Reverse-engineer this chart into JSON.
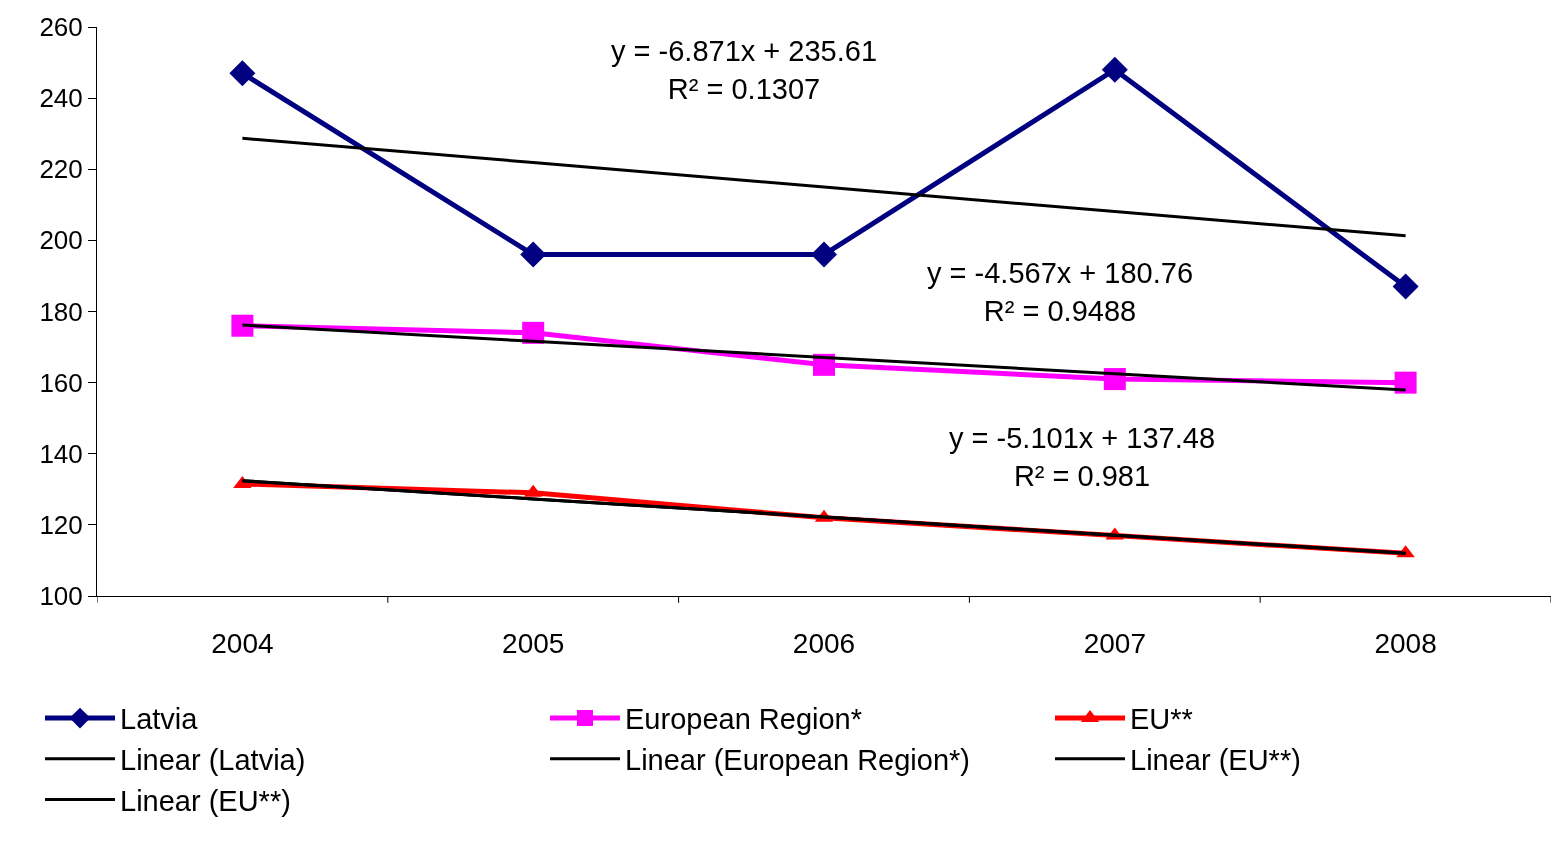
{
  "chart_data": {
    "type": "line",
    "categories": [
      "2004",
      "2005",
      "2006",
      "2007",
      "2008"
    ],
    "series": [
      {
        "name": "Latvia",
        "color": "#000080",
        "marker": "diamond",
        "values": [
          247,
          196,
          196,
          248,
          187
        ]
      },
      {
        "name": "European Region*",
        "color": "#ff00ff",
        "marker": "square",
        "values": [
          176,
          174,
          165,
          161,
          160
        ]
      },
      {
        "name": "EU**",
        "color": "#ff0000",
        "marker": "triangle",
        "values": [
          131.5,
          129,
          122,
          117,
          112
        ]
      },
      {
        "name": "Linear (Latvia)",
        "color": "#000000",
        "marker": "none",
        "values": [
          228.7,
          221.9,
          215.0,
          208.1,
          201.3
        ]
      },
      {
        "name": "Linear (European Region*)",
        "color": "#000000",
        "marker": "none",
        "values": [
          176.2,
          171.6,
          167.1,
          162.5,
          157.9
        ]
      },
      {
        "name": "Linear (EU**)",
        "color": "#000000",
        "marker": "none",
        "values": [
          132.4,
          127.3,
          122.2,
          117.1,
          112.0
        ]
      },
      {
        "name": "Linear (EU**)",
        "color": "#000000",
        "marker": "none",
        "values": [
          132.4,
          127.3,
          122.2,
          117.1,
          112.0
        ]
      }
    ],
    "ylim": [
      100,
      260
    ],
    "yticks": [
      100,
      120,
      140,
      160,
      180,
      200,
      220,
      240,
      260
    ],
    "legend": "bottom",
    "annotations": [
      "y = -6.871x + 235.61\nR² = 0.1307",
      "y = -4.567x + 180.76\nR² = 0.9488",
      "y = -5.101x + 137.48\nR² = 0.981"
    ]
  }
}
